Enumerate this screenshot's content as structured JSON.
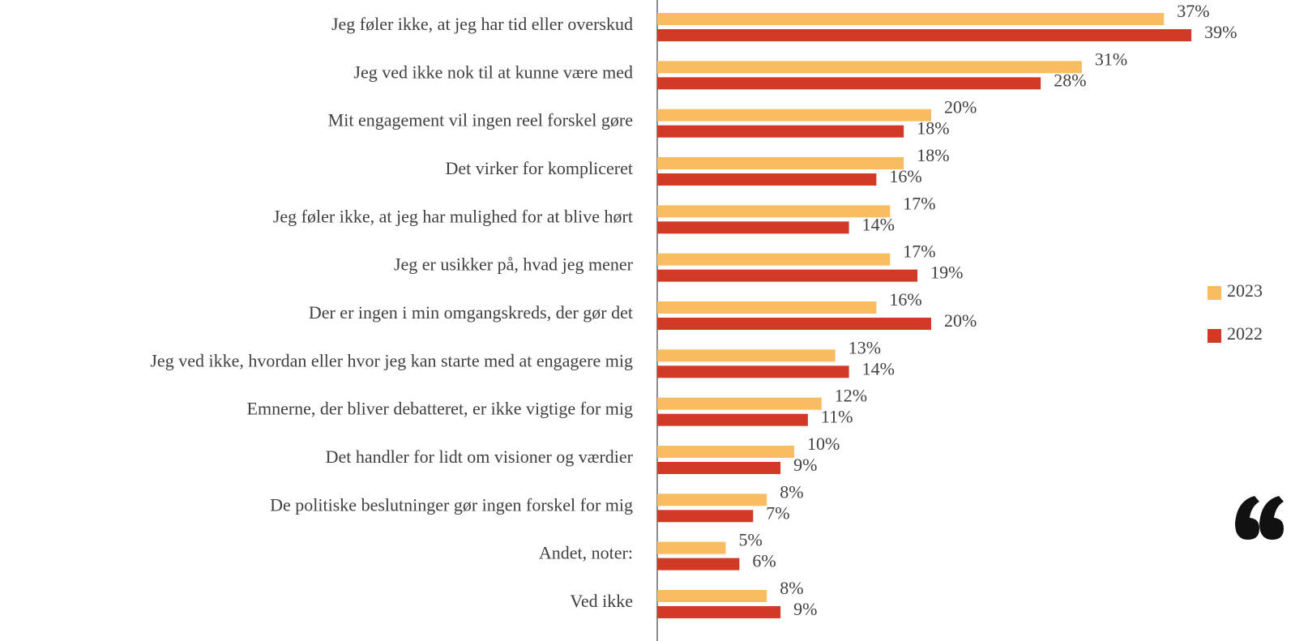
{
  "chart_data": {
    "type": "barh",
    "categories": [
      "Jeg føler ikke, at jeg har tid eller overskud",
      "Jeg ved ikke nok til at kunne være med",
      "Mit engagement vil ingen reel forskel gøre",
      "Det virker for kompliceret",
      "Jeg føler ikke, at jeg har mulighed for at blive hørt",
      "Jeg er usikker på, hvad jeg mener",
      "Der er ingen i min omgangskreds, der gør det",
      "Jeg ved ikke, hvordan eller hvor jeg kan starte med at engagere mig",
      "Emnerne, der bliver debatteret, er ikke vigtige for mig",
      "Det handler for lidt om visioner og værdier",
      "De politiske beslutninger gør ingen forskel for mig",
      "Andet, noter:",
      "Ved ikke"
    ],
    "series": [
      {
        "name": "2023",
        "color": "#f9bc60",
        "values": [
          37,
          31,
          20,
          18,
          17,
          17,
          16,
          13,
          12,
          10,
          8,
          5,
          8
        ],
        "value_labels": [
          "37%",
          "31%",
          "20%",
          "18%",
          "17%",
          "17%",
          "16%",
          "13%",
          "12%",
          "10%",
          "8%",
          "5%",
          "8%"
        ]
      },
      {
        "name": "2022",
        "color": "#d13a26",
        "values": [
          39,
          28,
          18,
          16,
          14,
          19,
          20,
          14,
          11,
          9,
          7,
          6,
          9
        ],
        "value_labels": [
          "39%",
          "28%",
          "18%",
          "16%",
          "14%",
          "19%",
          "20%",
          "14%",
          "11%",
          "9%",
          "7%",
          "6%",
          "9%"
        ]
      }
    ],
    "xlim": [
      0,
      40
    ],
    "legend": "right"
  }
}
